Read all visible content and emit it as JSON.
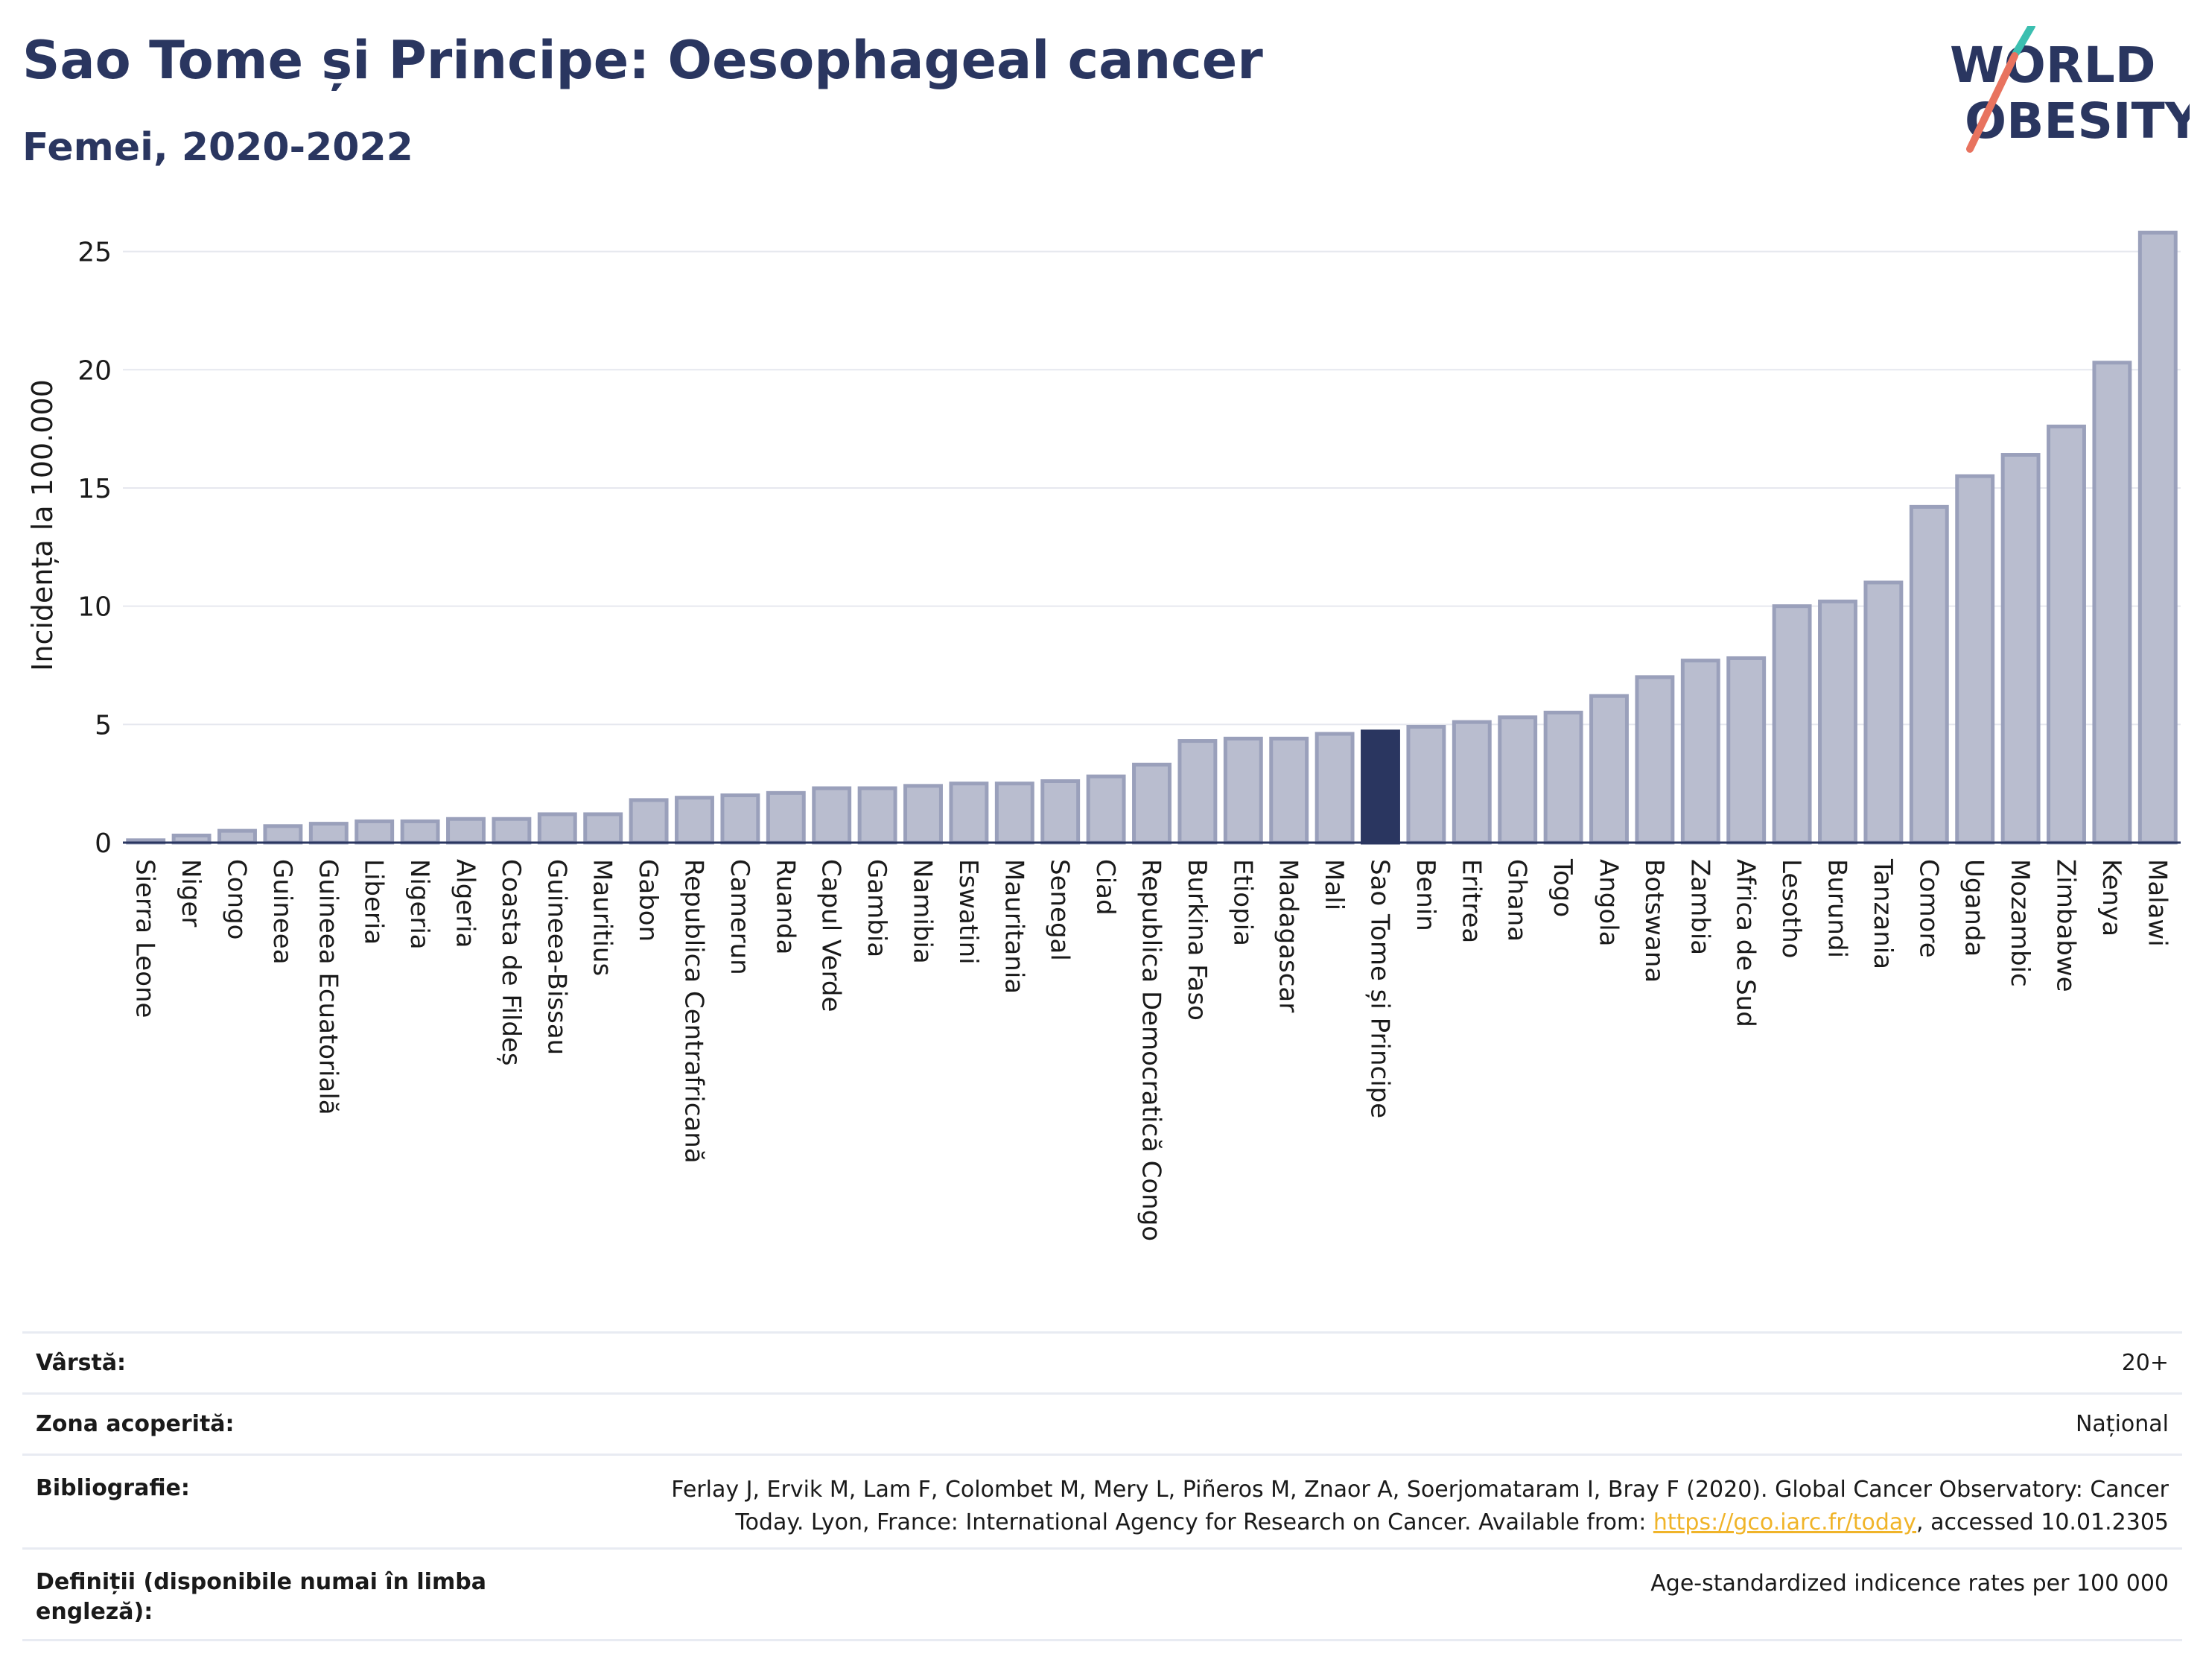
{
  "header": {
    "title": "Sao Tome și Principe: Oesophageal cancer",
    "subtitle": "Femei, 2020-2022",
    "logo_line1": "WORLD",
    "logo_line2": "OBESITY"
  },
  "colors": {
    "bar": "#b9bdcf",
    "bar_border": "#9aa0bb",
    "highlight": "#2a3660",
    "text": "#2a3660",
    "grid": "#e6e8ef",
    "link": "#f0b429"
  },
  "chart_data": {
    "type": "bar",
    "ylabel": "Incidența la 100.000",
    "ylim": [
      0,
      26.5
    ],
    "yticks": [
      0,
      5,
      10,
      15,
      20,
      25
    ],
    "grid": true,
    "highlight": "Sao Tome și Principe",
    "categories": [
      "Sierra Leone",
      "Niger",
      "Congo",
      "Guineea",
      "Guineea Ecuatorială",
      "Liberia",
      "Nigeria",
      "Algeria",
      "Coasta de Fildeș",
      "Guineea-Bissau",
      "Mauritius",
      "Gabon",
      "Republica Centrafricană",
      "Camerun",
      "Ruanda",
      "Capul Verde",
      "Gambia",
      "Namibia",
      "Eswatini",
      "Mauritania",
      "Senegal",
      "Ciad",
      "Republica Democratică Congo",
      "Burkina Faso",
      "Etiopia",
      "Madagascar",
      "Mali",
      "Sao Tome și Principe",
      "Benin",
      "Eritrea",
      "Ghana",
      "Togo",
      "Angola",
      "Botswana",
      "Zambia",
      "Africa de Sud",
      "Lesotho",
      "Burundi",
      "Tanzania",
      "Comore",
      "Uganda",
      "Mozambic",
      "Zimbabwe",
      "Kenya",
      "Malawi"
    ],
    "values": [
      0.1,
      0.3,
      0.5,
      0.7,
      0.8,
      0.9,
      0.9,
      1.0,
      1.0,
      1.2,
      1.2,
      1.8,
      1.9,
      2.0,
      2.1,
      2.3,
      2.3,
      2.4,
      2.5,
      2.5,
      2.6,
      2.8,
      3.3,
      4.3,
      4.4,
      4.4,
      4.6,
      4.7,
      4.9,
      5.1,
      5.3,
      5.5,
      6.2,
      7.0,
      7.7,
      7.8,
      10.0,
      10.2,
      11.0,
      14.2,
      15.5,
      16.4,
      17.6,
      20.3,
      25.8
    ]
  },
  "meta": {
    "age_label": "Vârstă:",
    "age_value": "20+",
    "coverage_label": "Zona acoperită:",
    "coverage_value": "Național",
    "bib_label": "Bibliografie:",
    "bib_line1": "Ferlay J, Ervik M, Lam F, Colombet M, Mery L, Piñeros M, Znaor A, Soerjomataram I, Bray F (2020). Global Cancer Observatory: Cancer",
    "bib_line2_pre": "Today. Lyon, France: International Agency for Research on Cancer. Available from: ",
    "bib_link": "https://gco.iarc.fr/today",
    "bib_line2_post": ", accessed 10.01.2305",
    "def_label": "Definiții (disponibile numai în limba engleză):",
    "def_value": "Age-standardized indicence rates per 100 000"
  }
}
